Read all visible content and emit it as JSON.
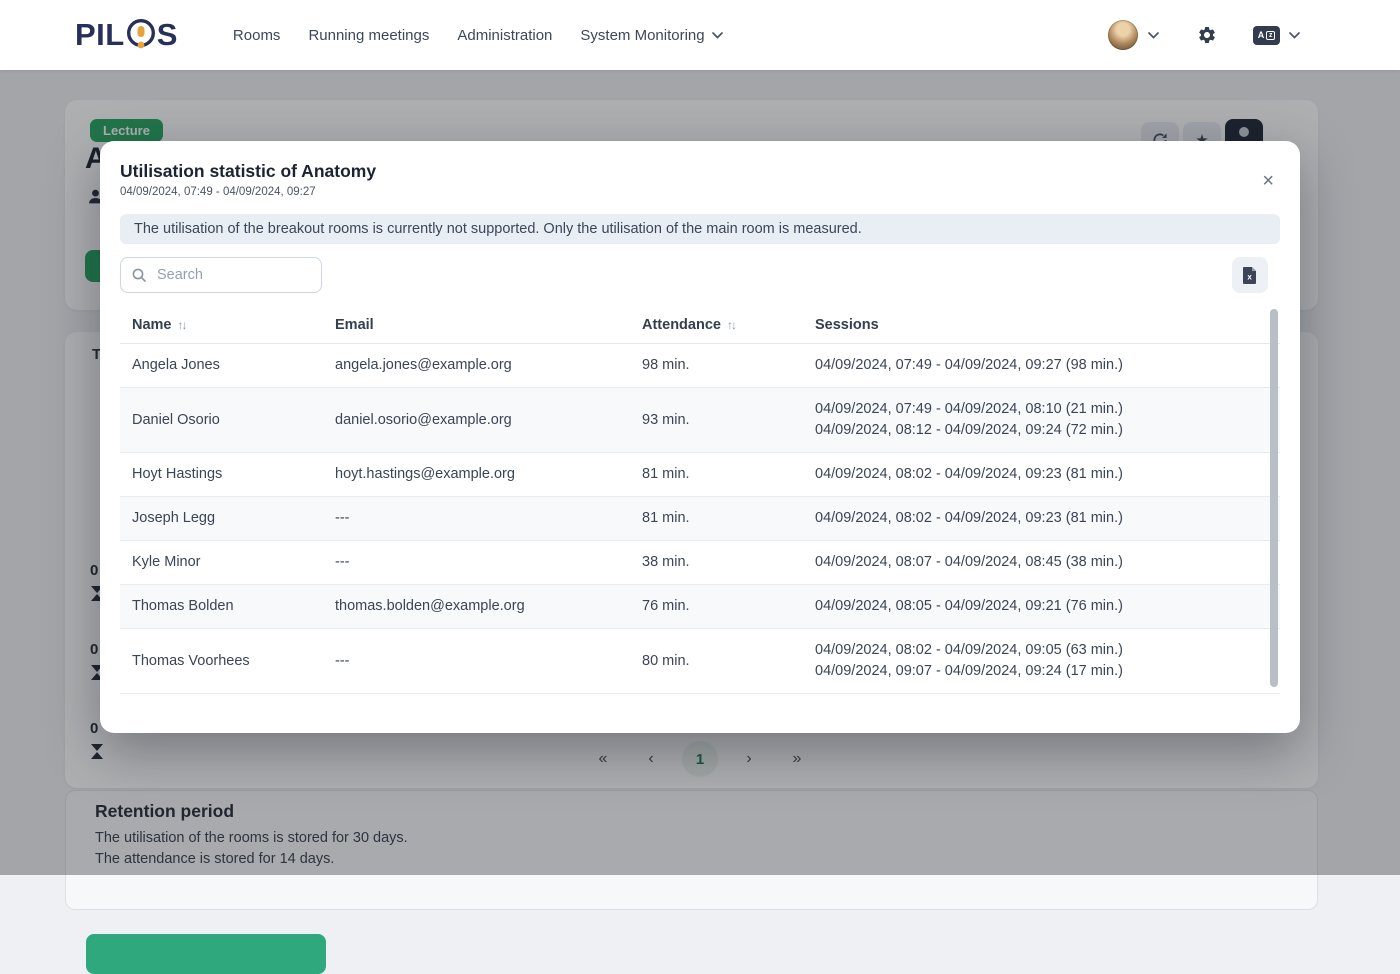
{
  "colors": {
    "primary_green": "#23a55f",
    "teal_button": "#2fa87e",
    "logo_navy": "#27305a",
    "active_page_text": "#157a5e",
    "dark_button": "#1c2434"
  },
  "navbar": {
    "logo": "PILOS",
    "items": [
      {
        "label": "Rooms",
        "has_dropdown": false
      },
      {
        "label": "Running meetings",
        "has_dropdown": false
      },
      {
        "label": "Administration",
        "has_dropdown": false
      },
      {
        "label": "System Monitoring",
        "has_dropdown": true
      }
    ]
  },
  "background": {
    "room": {
      "badge": "Lecture",
      "title": "Anatomy"
    },
    "tab_partial": "T",
    "stats": [
      {
        "value": "0"
      },
      {
        "value": "0"
      },
      {
        "value": "0"
      }
    ],
    "pagination": {
      "first_label": "«",
      "prev_label": "‹",
      "page": "1",
      "next_label": "›",
      "last_label": "»"
    },
    "retention": {
      "title": "Retention period",
      "line1": "The utilisation of the rooms is stored for 30 days.",
      "line2": "The attendance is stored for 14 days."
    }
  },
  "modal": {
    "title": "Utilisation statistic of Anatomy",
    "subtitle": "04/09/2024, 07:49 - 04/09/2024, 09:27",
    "close_label": "×",
    "info": "The utilisation of the breakout rooms is currently not supported. Only the utilisation of the main room is measured.",
    "search_placeholder": "Search",
    "sort_icon": "↑↓",
    "table": {
      "columns": [
        {
          "label": "Name",
          "sortable": true
        },
        {
          "label": "Email",
          "sortable": false
        },
        {
          "label": "Attendance",
          "sortable": true
        },
        {
          "label": "Sessions",
          "sortable": false
        }
      ],
      "rows": [
        {
          "name": "Angela Jones",
          "email": "angela.jones@example.org",
          "attendance": "98 min.",
          "sessions": [
            "04/09/2024, 07:49 - 04/09/2024, 09:27 (98 min.)"
          ]
        },
        {
          "name": "Daniel Osorio",
          "email": "daniel.osorio@example.org",
          "attendance": "93 min.",
          "sessions": [
            "04/09/2024, 07:49 - 04/09/2024, 08:10 (21 min.)",
            "04/09/2024, 08:12 - 04/09/2024, 09:24 (72 min.)"
          ]
        },
        {
          "name": "Hoyt Hastings",
          "email": "hoyt.hastings@example.org",
          "attendance": "81 min.",
          "sessions": [
            "04/09/2024, 08:02 - 04/09/2024, 09:23 (81 min.)"
          ]
        },
        {
          "name": "Joseph Legg",
          "email": "---",
          "attendance": "81 min.",
          "sessions": [
            "04/09/2024, 08:02 - 04/09/2024, 09:23 (81 min.)"
          ]
        },
        {
          "name": "Kyle Minor",
          "email": "---",
          "attendance": "38 min.",
          "sessions": [
            "04/09/2024, 08:07 - 04/09/2024, 08:45 (38 min.)"
          ]
        },
        {
          "name": "Thomas Bolden",
          "email": "thomas.bolden@example.org",
          "attendance": "76 min.",
          "sessions": [
            "04/09/2024, 08:05 - 04/09/2024, 09:21 (76 min.)"
          ]
        },
        {
          "name": "Thomas Voorhees",
          "email": "---",
          "attendance": "80 min.",
          "sessions": [
            "04/09/2024, 08:02 - 04/09/2024, 09:05 (63 min.)",
            "04/09/2024, 09:07 - 04/09/2024, 09:24 (17 min.)"
          ]
        }
      ]
    }
  }
}
